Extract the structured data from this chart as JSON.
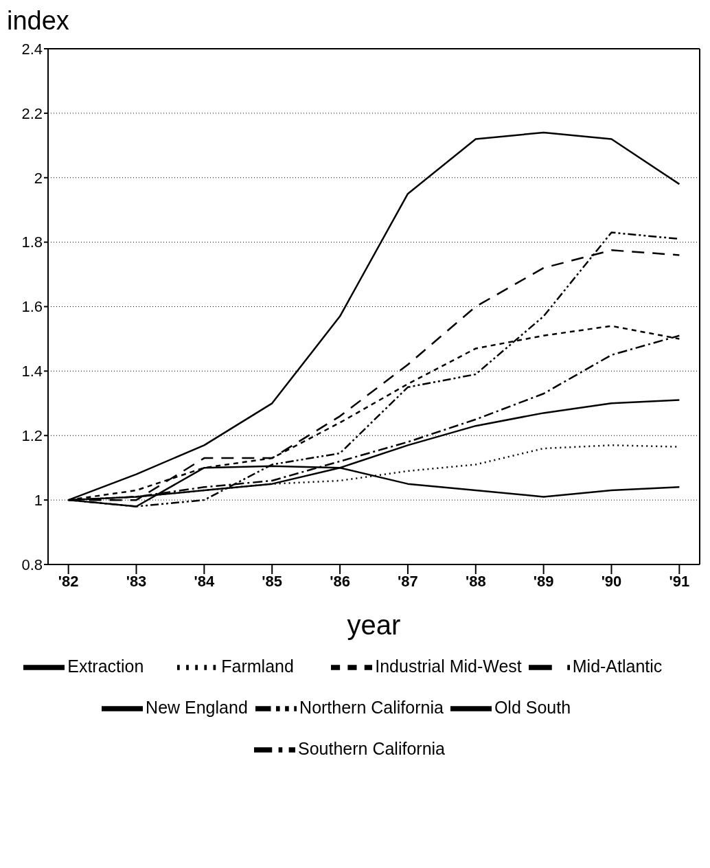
{
  "chart_data": {
    "type": "line",
    "ylabel": "index",
    "xlabel": "year",
    "categories": [
      "'82",
      "'83",
      "'84",
      "'85",
      "'86",
      "'87",
      "'88",
      "'89",
      "'90",
      "'91"
    ],
    "ylim": [
      0.8,
      2.4
    ],
    "yticks": [
      0.8,
      1,
      1.2,
      1.4,
      1.6,
      1.8,
      2,
      2.2,
      2.4
    ],
    "grid": "y",
    "legend": "bottom",
    "marker": "none",
    "series": [
      {
        "name": "New England",
        "color": "#000000",
        "line_style": "solid",
        "values": [
          1,
          1.08,
          1.17,
          1.3,
          1.57,
          1.95,
          2.12,
          2.14,
          2.12,
          1.98
        ]
      },
      {
        "name": "Industrial Mid-West",
        "color": "#000000",
        "line_style": "dashed",
        "values": [
          1,
          1.03,
          1.1,
          1.13,
          1.24,
          1.36,
          1.47,
          1.51,
          1.54,
          1.5
        ]
      },
      {
        "name": "Farmland",
        "color": "#000000",
        "line_style": "dotted",
        "values": [
          1,
          1.01,
          1.03,
          1.05,
          1.06,
          1.09,
          1.11,
          1.16,
          1.17,
          1.165
        ]
      },
      {
        "name": "Mid-Atlantic",
        "color": "#000000",
        "line_style": "longdash",
        "values": [
          1,
          1.0,
          1.13,
          1.13,
          1.26,
          1.42,
          1.6,
          1.72,
          1.775,
          1.76
        ]
      },
      {
        "name": "Northern California",
        "color": "#000000",
        "line_style": "dashdotdot",
        "values": [
          1,
          0.98,
          1.0,
          1.11,
          1.145,
          1.35,
          1.39,
          1.57,
          1.83,
          1.81
        ]
      },
      {
        "name": "Southern California",
        "color": "#000000",
        "line_style": "dashdot",
        "values": [
          1,
          1.01,
          1.04,
          1.06,
          1.12,
          1.18,
          1.25,
          1.33,
          1.45,
          1.51
        ]
      },
      {
        "name": "Old South",
        "color": "#000000",
        "line_style": "solid",
        "values": [
          1,
          1.01,
          1.03,
          1.05,
          1.1,
          1.17,
          1.23,
          1.27,
          1.3,
          1.31
        ]
      },
      {
        "name": "Extraction",
        "color": "#000000",
        "line_style": "solid",
        "values": [
          1,
          0.98,
          1.1,
          1.105,
          1.1,
          1.05,
          1.03,
          1.01,
          1.03,
          1.04
        ]
      }
    ]
  }
}
